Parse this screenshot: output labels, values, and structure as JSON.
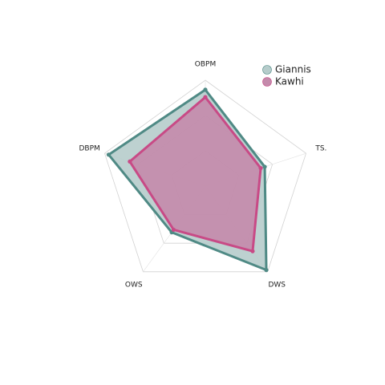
{
  "chart_data": {
    "type": "radar",
    "axes": [
      "OBPM",
      "TS.",
      "DWS",
      "OWS",
      "DBPM"
    ],
    "range": [
      0,
      1
    ],
    "grid_levels": 3,
    "legend_position": "top-right",
    "series": [
      {
        "name": "Giannis",
        "values": [
          0.91,
          0.59,
          0.98,
          0.54,
          0.96
        ],
        "color": "#4f8a85",
        "fill": "#b6cccb"
      },
      {
        "name": "Kawhi",
        "values": [
          0.84,
          0.55,
          0.76,
          0.51,
          0.75
        ],
        "color": "#c84a86",
        "fill": "#c48aab"
      }
    ]
  }
}
